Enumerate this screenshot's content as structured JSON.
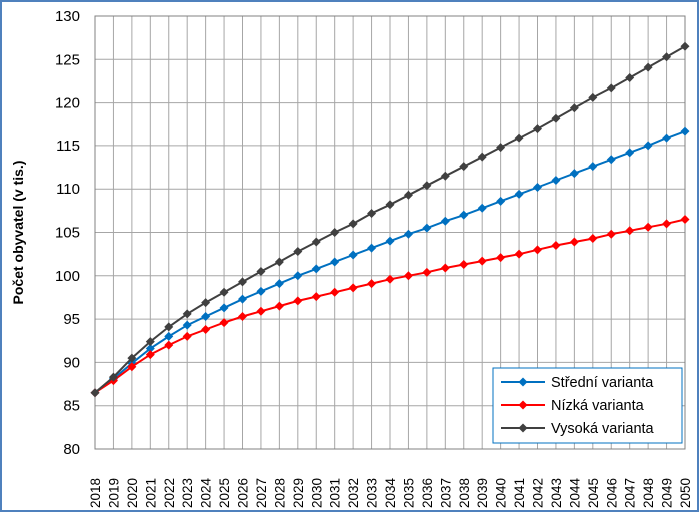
{
  "chart_data": {
    "type": "line",
    "title": "",
    "xlabel": "",
    "ylabel": "Počet obyvatel (v tis.)",
    "ylim": [
      80,
      130
    ],
    "yticks": [
      80,
      85,
      90,
      95,
      100,
      105,
      110,
      115,
      120,
      125,
      130
    ],
    "grid": true,
    "legend_position": "bottom-right",
    "categories": [
      "2018",
      "2019",
      "2020",
      "2021",
      "2022",
      "2023",
      "2024",
      "2025",
      "2026",
      "2027",
      "2028",
      "2029",
      "2030",
      "2031",
      "2032",
      "2033",
      "2034",
      "2035",
      "2036",
      "2037",
      "2038",
      "2039",
      "2040",
      "2041",
      "2042",
      "2043",
      "2044",
      "2045",
      "2046",
      "2047",
      "2048",
      "2049",
      "2050"
    ],
    "series": [
      {
        "name": "Střední varianta",
        "color": "#0070c0",
        "values": [
          86.5,
          88.1,
          89.9,
          91.6,
          93.0,
          94.3,
          95.3,
          96.3,
          97.3,
          98.2,
          99.1,
          100.0,
          100.8,
          101.6,
          102.4,
          103.2,
          104.0,
          104.8,
          105.5,
          106.3,
          107.0,
          107.8,
          108.6,
          109.4,
          110.2,
          111.0,
          111.8,
          112.6,
          113.4,
          114.2,
          115.0,
          115.9,
          116.7
        ]
      },
      {
        "name": "Nízká varianta",
        "color": "#ff0000",
        "values": [
          86.5,
          87.9,
          89.5,
          90.9,
          92.0,
          93.0,
          93.8,
          94.6,
          95.3,
          95.9,
          96.5,
          97.1,
          97.6,
          98.1,
          98.6,
          99.1,
          99.6,
          100.0,
          100.4,
          100.9,
          101.3,
          101.7,
          102.1,
          102.5,
          103.0,
          103.5,
          103.9,
          104.3,
          104.8,
          105.2,
          105.6,
          106.0,
          106.5
        ]
      },
      {
        "name": "Vysoká varianta",
        "color": "#404040",
        "values": [
          86.5,
          88.3,
          90.5,
          92.4,
          94.1,
          95.6,
          96.9,
          98.1,
          99.3,
          100.5,
          101.6,
          102.8,
          103.9,
          105.0,
          106.0,
          107.2,
          108.2,
          109.3,
          110.4,
          111.5,
          112.6,
          113.7,
          114.8,
          115.9,
          117.0,
          118.2,
          119.4,
          120.6,
          121.7,
          122.9,
          124.1,
          125.3,
          126.5
        ]
      }
    ]
  }
}
